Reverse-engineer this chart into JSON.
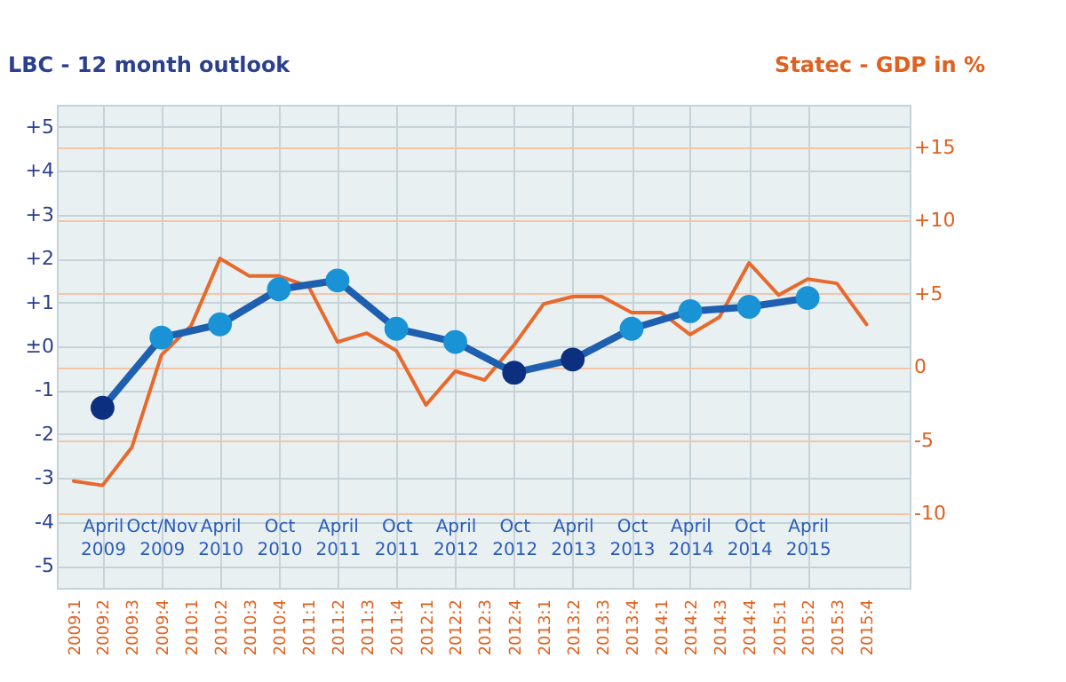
{
  "chart_data": {
    "type": "line",
    "ylabel": "LBC - 12 month outlook",
    "y2label": "Statec - GDP in %",
    "xlim": [
      "2008-11-10",
      "2016-02-12"
    ],
    "xticks": [
      {
        "value": "2009-01",
        "label": "2009:1"
      },
      {
        "value": "2009-04",
        "label": "2009:2"
      },
      {
        "value": "2009-07",
        "label": "2009:3"
      },
      {
        "value": "2009-10",
        "label": "2009:4"
      },
      {
        "value": "2010-01",
        "label": "2010:1"
      },
      {
        "value": "2010-04",
        "label": "2010:2"
      },
      {
        "value": "2010-07",
        "label": "2010:3"
      },
      {
        "value": "2010-10",
        "label": "2010:4"
      },
      {
        "value": "2011-01",
        "label": "2011:1"
      },
      {
        "value": "2011-04",
        "label": "2011:2"
      },
      {
        "value": "2011-07",
        "label": "2011:3"
      },
      {
        "value": "2011-10",
        "label": "2011:4"
      },
      {
        "value": "2012-01",
        "label": "2012:1"
      },
      {
        "value": "2012-04",
        "label": "2012:2"
      },
      {
        "value": "2012-07",
        "label": "2012:3"
      },
      {
        "value": "2012-10",
        "label": "2012:4"
      },
      {
        "value": "2013-01",
        "label": "2013:1"
      },
      {
        "value": "2013-04",
        "label": "2013:2"
      },
      {
        "value": "2013-07",
        "label": "2013:3"
      },
      {
        "value": "2013-10",
        "label": "2013:4"
      },
      {
        "value": "2014-01",
        "label": "2014:1"
      },
      {
        "value": "2014-04",
        "label": "2014:2"
      },
      {
        "value": "2014-07",
        "label": "2014:3"
      },
      {
        "value": "2014-10",
        "label": "2014:4"
      },
      {
        "value": "2015-01",
        "label": "2015:1"
      },
      {
        "value": "2015-04",
        "label": "2015:2"
      },
      {
        "value": "2015-07",
        "label": "2015:3"
      },
      {
        "value": "2015-10",
        "label": "2015:4"
      }
    ],
    "x2lim": [
      "2008-11-10",
      "2016-02-12"
    ],
    "x2ticks": [
      {
        "value": "2009-04",
        "label": "April 2009"
      },
      {
        "value": "2009-10",
        "label": "Oct/Nov 2009"
      },
      {
        "value": "2010-04",
        "label": "April 2010"
      },
      {
        "value": "2010-10",
        "label": "Oct 2010"
      },
      {
        "value": "2011-04",
        "label": "April 2011"
      },
      {
        "value": "2011-10",
        "label": "Oct 2011"
      },
      {
        "value": "2012-04",
        "label": "April 2012"
      },
      {
        "value": "2012-10",
        "label": "Oct 2012"
      },
      {
        "value": "2013-04",
        "label": "April 2013"
      },
      {
        "value": "2013-10",
        "label": "Oct 2013"
      },
      {
        "value": "2014-04",
        "label": "April 2014"
      },
      {
        "value": "2014-10",
        "label": "Oct 2014"
      },
      {
        "value": "2015-04",
        "label": "April 2015"
      }
    ],
    "ylim": [
      -5.5,
      5.5
    ],
    "yticks": [
      {
        "value": 5,
        "label": "+5"
      },
      {
        "value": 4,
        "label": "+4"
      },
      {
        "value": 3,
        "label": "+3"
      },
      {
        "value": 2,
        "label": "+2"
      },
      {
        "value": 1,
        "label": "+1"
      },
      {
        "value": 0,
        "label": "±0"
      },
      -1,
      -2,
      -3,
      -4,
      -5
    ],
    "y2lim": [
      -15.1,
      17.9
    ],
    "y2ticks": [
      {
        "value": 15,
        "label": "+15"
      },
      {
        "value": 10,
        "label": "+10"
      },
      {
        "value": 5,
        "label": "+5"
      },
      0,
      -5,
      -10
    ],
    "grid": true,
    "series": [
      {
        "color": "#1e5fb0",
        "marker": "circle",
        "x": [
          "2009-04",
          "2009-10",
          "2010-04",
          "2010-10",
          "2011-04",
          "2011-10",
          "2012-04",
          "2012-10",
          "2013-04",
          "2013-10",
          "2014-04",
          "2014-10",
          "2015-04"
        ],
        "values": [
          -1.4,
          0.2,
          0.5,
          1.3,
          1.5,
          0.4,
          0.1,
          -0.6,
          -0.3,
          0.4,
          0.8,
          0.9,
          1.1
        ],
        "colors": [
          "#0d2f80",
          "#1a93d6",
          "#1a93d6",
          "#1a93d6",
          "#1a93d6",
          "#1a93d6",
          "#1a93d6",
          "#0d2f80",
          "#0d2f80",
          "#1a93d6",
          "#1a93d6",
          "#1a93d6",
          "#1a93d6"
        ]
      },
      {
        "color": "#e8692c",
        "axis": "y2",
        "x": [
          "2009-01",
          "2009-04",
          "2009-07",
          "2009-10",
          "2010-01",
          "2010-04",
          "2010-07",
          "2010-10",
          "2011-01",
          "2011-04",
          "2011-07",
          "2011-10",
          "2012-01",
          "2012-04",
          "2012-07",
          "2012-10",
          "2013-01",
          "2013-04",
          "2013-07",
          "2013-10",
          "2014-01",
          "2014-04",
          "2014-07",
          "2014-10",
          "2015-01",
          "2015-04",
          "2015-07",
          "2015-10"
        ],
        "values": [
          -7.8,
          -8.1,
          -5.5,
          0.8,
          2.8,
          7.4,
          6.2,
          6.2,
          5.5,
          1.7,
          2.3,
          1.1,
          -2.6,
          -0.3,
          -0.9,
          1.5,
          4.3,
          4.8,
          4.8,
          3.7,
          3.7,
          2.2,
          3.4,
          7.1,
          4.9,
          6.0,
          5.7,
          2.9
        ]
      }
    ]
  }
}
